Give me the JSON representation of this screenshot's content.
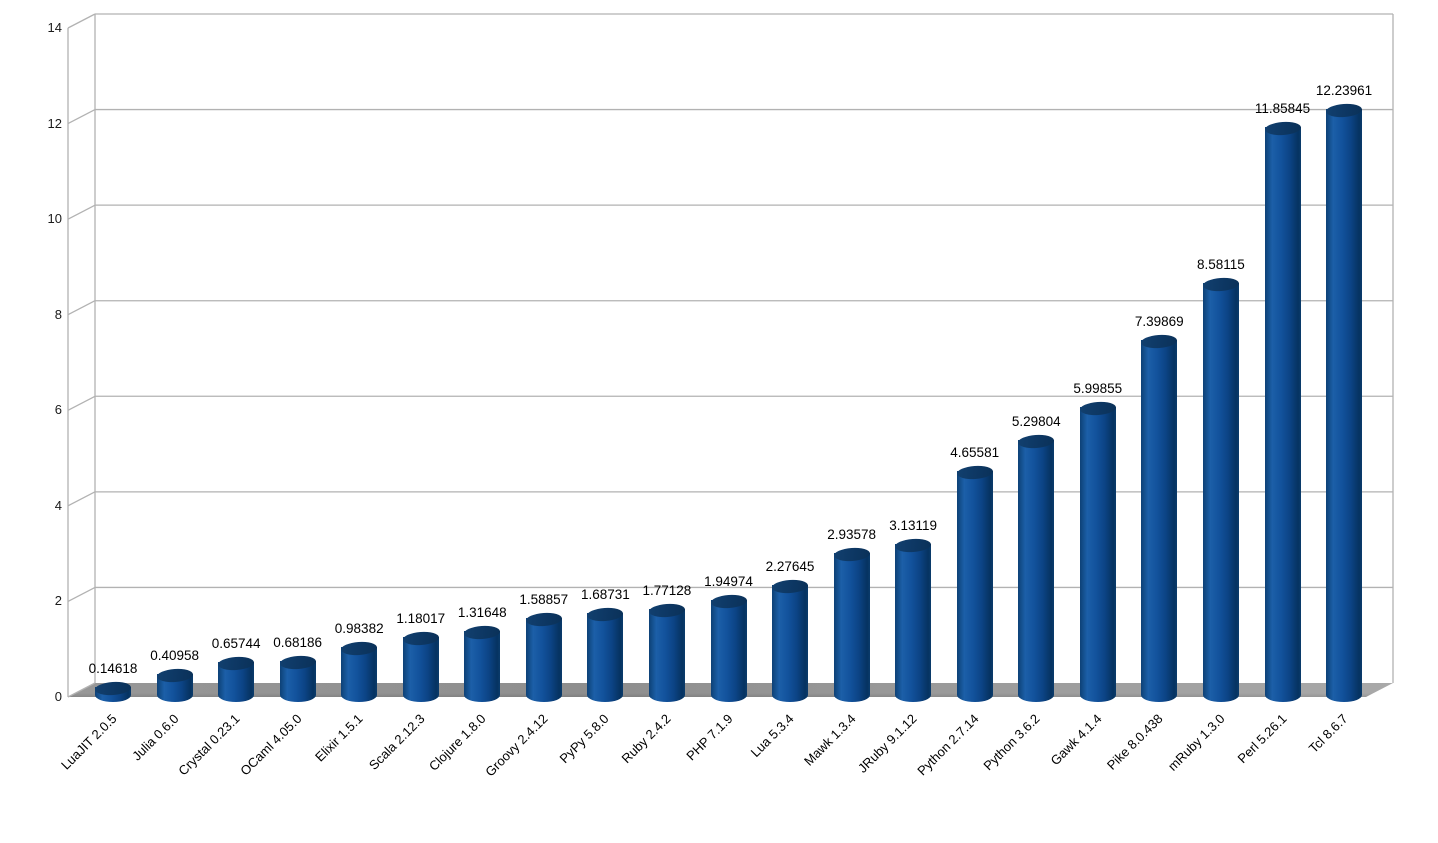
{
  "chart_data": {
    "type": "bar",
    "style": "3d-cylinder",
    "title": "",
    "xlabel": "",
    "ylabel": "",
    "categories": [
      "LuaJIT 2.0.5",
      "Julia 0.6.0",
      "Crystal 0.23.1",
      "OCaml 4.05.0",
      "Elixir 1.5.1",
      "Scala 2.12.3",
      "Clojure 1.8.0",
      "Groovy 2.4.12",
      "PyPy 5.8.0",
      "Ruby 2.4.2",
      "PHP 7.1.9",
      "Lua 5.3.4",
      "Mawk 1.3.4",
      "JRuby 9.1.12",
      "Python 2.7.14",
      "Python 3.6.2",
      "Gawk 4.1.4",
      "Pike 8.0.438",
      "mRuby 1.3.0",
      "Perl 5.26.1",
      "Tcl 8.6.7"
    ],
    "values": [
      0.14618,
      0.40958,
      0.65744,
      0.68186,
      0.98382,
      1.18017,
      1.31648,
      1.58857,
      1.68731,
      1.77128,
      1.94974,
      2.27645,
      2.93578,
      3.13119,
      4.65581,
      5.29804,
      5.99855,
      7.39869,
      8.58115,
      11.85845,
      12.23961
    ],
    "value_labels": [
      "0.14618",
      "0.40958",
      "0.65744",
      "0.68186",
      "0.98382",
      "1.18017",
      "1.31648",
      "1.58857",
      "1.68731",
      "1.77128",
      "1.94974",
      "2.27645",
      "2.93578",
      "3.13119",
      "4.65581",
      "5.29804",
      "5.99855",
      "7.39869",
      "8.58115",
      "11.85845",
      "12.23961"
    ],
    "y_ticks": [
      "0",
      "2",
      "4",
      "6",
      "8",
      "10",
      "12",
      "14"
    ],
    "y_tick_values": [
      0,
      2,
      4,
      6,
      8,
      10,
      12,
      14
    ],
    "ylim": [
      0,
      14
    ],
    "grid": true,
    "legend": false,
    "colors": {
      "bar_highlight": "#1c5fa8",
      "bar_dark": "#063361",
      "bar_cap": "#0e3962",
      "floor": "#919191",
      "gridline": "#b2b2b2",
      "background": "#ffffff",
      "text": "#000000"
    }
  }
}
